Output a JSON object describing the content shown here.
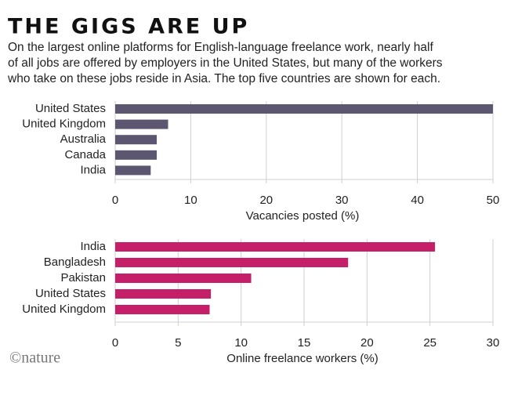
{
  "title": "THE GIGS ARE UP",
  "subtitle": [
    "On the largest online platforms for English-language freelance work, nearly half",
    "of all jobs are offered by employers in the United States, but many of the workers",
    "who take on these jobs reside in Asia. The top five countries are shown for each."
  ],
  "credit": "©nature",
  "chart_data": [
    {
      "type": "bar",
      "orientation": "horizontal",
      "xlabel": "Vacancies posted (%)",
      "categories": [
        "United States",
        "United Kingdom",
        "Australia",
        "Canada",
        "India"
      ],
      "values": [
        50,
        7,
        5.5,
        5.5,
        4.7
      ],
      "color": "#5d5670",
      "xlim": [
        0,
        50
      ],
      "xticks": [
        0,
        10,
        20,
        30,
        40,
        50
      ],
      "grid": true
    },
    {
      "type": "bar",
      "orientation": "horizontal",
      "xlabel": "Online freelance workers (%)",
      "categories": [
        "India",
        "Bangladesh",
        "Pakistan",
        "United States",
        "United Kingdom"
      ],
      "values": [
        25.4,
        18.5,
        10.8,
        7.6,
        7.5
      ],
      "color": "#c41f68",
      "xlim": [
        0,
        30
      ],
      "xticks": [
        0,
        5,
        10,
        15,
        20,
        25,
        30
      ],
      "grid": true
    }
  ]
}
